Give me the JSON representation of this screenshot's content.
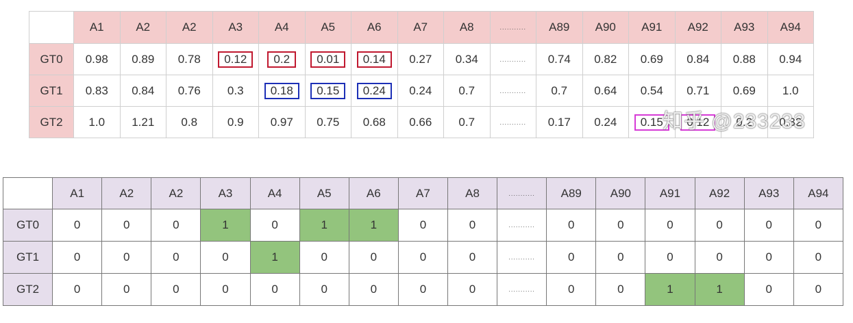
{
  "iou_table": {
    "columns": [
      "A1",
      "A2",
      "A2",
      "A3",
      "A4",
      "A5",
      "A6",
      "A7",
      "A8",
      "...........",
      "A89",
      "A90",
      "A91",
      "A92",
      "A93",
      "A94"
    ],
    "rows": [
      {
        "label": "GT0",
        "cells": [
          {
            "v": "0.98"
          },
          {
            "v": "0.89"
          },
          {
            "v": "0.78"
          },
          {
            "v": "0.12",
            "box": "red"
          },
          {
            "v": "0.2",
            "box": "red"
          },
          {
            "v": "0.01",
            "box": "red"
          },
          {
            "v": "0.14",
            "box": "red"
          },
          {
            "v": "0.27"
          },
          {
            "v": "0.34"
          },
          {
            "v": "...........",
            "dots": true
          },
          {
            "v": "0.74"
          },
          {
            "v": "0.82"
          },
          {
            "v": "0.69"
          },
          {
            "v": "0.84"
          },
          {
            "v": "0.88"
          },
          {
            "v": "0.94"
          }
        ]
      },
      {
        "label": "GT1",
        "cells": [
          {
            "v": "0.83"
          },
          {
            "v": "0.84"
          },
          {
            "v": "0.76"
          },
          {
            "v": "0.3"
          },
          {
            "v": "0.18",
            "box": "blue"
          },
          {
            "v": "0.15",
            "box": "blue"
          },
          {
            "v": "0.24",
            "box": "blue"
          },
          {
            "v": "0.24"
          },
          {
            "v": "0.7"
          },
          {
            "v": "...........",
            "dots": true
          },
          {
            "v": "0.7"
          },
          {
            "v": "0.64"
          },
          {
            "v": "0.54"
          },
          {
            "v": "0.71"
          },
          {
            "v": "0.69"
          },
          {
            "v": "1.0"
          }
        ]
      },
      {
        "label": "GT2",
        "cells": [
          {
            "v": "1.0"
          },
          {
            "v": "1.21"
          },
          {
            "v": "0.8"
          },
          {
            "v": "0.9"
          },
          {
            "v": "0.97"
          },
          {
            "v": "0.75"
          },
          {
            "v": "0.68"
          },
          {
            "v": "0.66"
          },
          {
            "v": "0.7"
          },
          {
            "v": "...........",
            "dots": true
          },
          {
            "v": "0.17"
          },
          {
            "v": "0.24"
          },
          {
            "v": "0.15",
            "box": "magenta"
          },
          {
            "v": "0.12",
            "box": "magenta"
          },
          {
            "v": "0.2"
          },
          {
            "v": "0.32"
          }
        ]
      }
    ]
  },
  "assign_table": {
    "columns": [
      "A1",
      "A2",
      "A2",
      "A3",
      "A4",
      "A5",
      "A6",
      "A7",
      "A8",
      "...........",
      "A89",
      "A90",
      "A91",
      "A92",
      "A93",
      "A94"
    ],
    "rows": [
      {
        "label": "GT0",
        "cells": [
          "0",
          "0",
          "0",
          "1",
          "0",
          "1",
          "1",
          "0",
          "0",
          "...........",
          "0",
          "0",
          "0",
          "0",
          "0",
          "0"
        ]
      },
      {
        "label": "GT1",
        "cells": [
          "0",
          "0",
          "0",
          "0",
          "1",
          "0",
          "0",
          "0",
          "0",
          "...........",
          "0",
          "0",
          "0",
          "0",
          "0",
          "0"
        ]
      },
      {
        "label": "GT2",
        "cells": [
          "0",
          "0",
          "0",
          "0",
          "0",
          "0",
          "0",
          "0",
          "0",
          "...........",
          "0",
          "0",
          "1",
          "1",
          "0",
          "0"
        ]
      }
    ]
  },
  "watermark": "知乎 @233233",
  "colors": {
    "iou_header_bg": "#f4cccc",
    "assign_header_bg": "#e6deec",
    "positive_bg": "#93c47d",
    "box_red": "#c0182f",
    "box_blue": "#1c2fb6",
    "box_magenta": "#d63bd6"
  }
}
